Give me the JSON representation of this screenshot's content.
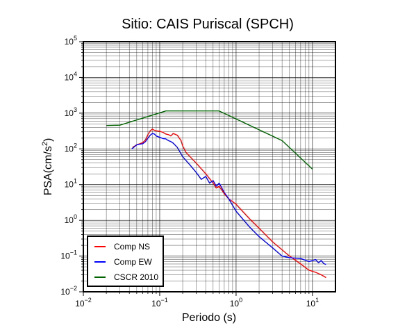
{
  "chart_data": {
    "type": "line",
    "title": "Sitio: CAIS Puriscal (SPCH)",
    "xlabel": "Periodo (s)",
    "ylabel_main": "PSA(cm/s",
    "ylabel_sup": "2",
    "ylabel_tail": ")",
    "x_scale": "log",
    "y_scale": "log",
    "xlim": [
      0.01,
      20
    ],
    "ylim": [
      0.01,
      100000
    ],
    "grid": true,
    "legend_position": "bottom-left",
    "x_ticks": [
      {
        "value": 0.01,
        "base": "10",
        "exp": "−2"
      },
      {
        "value": 0.1,
        "base": "10",
        "exp": "−1"
      },
      {
        "value": 1,
        "base": "10",
        "exp": "0"
      },
      {
        "value": 10,
        "base": "10",
        "exp": "1"
      }
    ],
    "y_ticks": [
      {
        "value": 0.01,
        "base": "10",
        "exp": "−2"
      },
      {
        "value": 0.1,
        "base": "10",
        "exp": "−1"
      },
      {
        "value": 1,
        "base": "10",
        "exp": "0"
      },
      {
        "value": 10,
        "base": "10",
        "exp": "1"
      },
      {
        "value": 100,
        "base": "10",
        "exp": "2"
      },
      {
        "value": 1000,
        "base": "10",
        "exp": "3"
      },
      {
        "value": 10000,
        "base": "10",
        "exp": "4"
      },
      {
        "value": 100000,
        "base": "10",
        "exp": "5"
      }
    ],
    "series": [
      {
        "name": "Comp NS",
        "color": "#ff0000",
        "x": [
          0.044,
          0.05,
          0.055,
          0.06,
          0.065,
          0.07,
          0.075,
          0.08,
          0.085,
          0.09,
          0.1,
          0.11,
          0.12,
          0.13,
          0.14,
          0.15,
          0.17,
          0.19,
          0.2,
          0.22,
          0.25,
          0.3,
          0.4,
          0.5,
          0.55,
          0.6,
          0.65,
          0.7,
          0.8,
          1.0,
          1.5,
          2.0,
          3.0,
          5.0,
          7.0,
          9.0,
          11.0,
          13.0,
          15.0
        ],
        "y": [
          110,
          130,
          140,
          150,
          180,
          250,
          320,
          360,
          330,
          320,
          310,
          290,
          260,
          250,
          230,
          270,
          240,
          170,
          120,
          80,
          60,
          40,
          20,
          11,
          8,
          9,
          7,
          5.5,
          4,
          2.8,
          1.1,
          0.6,
          0.25,
          0.1,
          0.06,
          0.04,
          0.035,
          0.03,
          0.025
        ]
      },
      {
        "name": "Comp EW",
        "color": "#0000ff",
        "x": [
          0.043,
          0.05,
          0.055,
          0.06,
          0.065,
          0.07,
          0.075,
          0.08,
          0.085,
          0.09,
          0.1,
          0.11,
          0.12,
          0.13,
          0.14,
          0.15,
          0.17,
          0.2,
          0.25,
          0.3,
          0.35,
          0.4,
          0.45,
          0.5,
          0.55,
          0.6,
          0.7,
          0.8,
          1.0,
          1.5,
          2.0,
          3.0,
          4.0,
          5.0,
          7.0,
          9.0,
          11.0,
          12.0,
          13.0,
          14.0,
          15.0
        ],
        "y": [
          100,
          130,
          135,
          140,
          160,
          200,
          240,
          270,
          260,
          230,
          210,
          195,
          190,
          170,
          160,
          145,
          110,
          60,
          35,
          22,
          14,
          17,
          11,
          13,
          9,
          11,
          6,
          4,
          1.8,
          0.65,
          0.35,
          0.17,
          0.1,
          0.09,
          0.085,
          0.07,
          0.08,
          0.065,
          0.075,
          0.062,
          0.058
        ]
      },
      {
        "name": "CSCR 2010",
        "color": "#006400",
        "x": [
          0.02,
          0.03,
          0.12,
          0.6,
          4.0,
          10.0
        ],
        "y": [
          450,
          460,
          1150,
          1150,
          170,
          27
        ]
      }
    ]
  }
}
